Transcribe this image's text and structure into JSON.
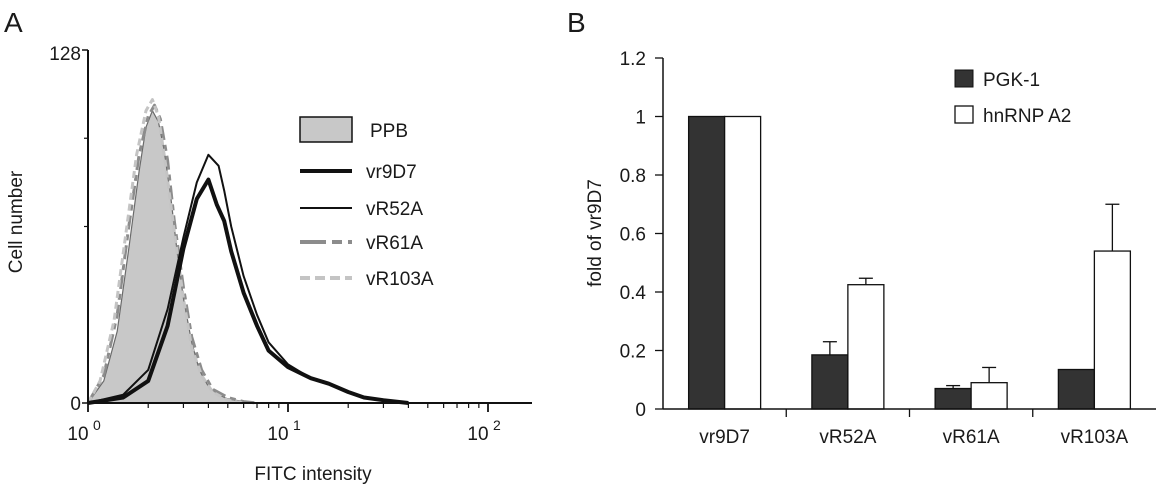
{
  "chart_data": [
    {
      "panel": "A",
      "type": "line",
      "xlabel": "FITC intensity",
      "ylabel": "Cell number",
      "xscale": "log",
      "xlim": [
        1,
        150
      ],
      "ylim": [
        0,
        128
      ],
      "y_tick_labels": [
        "0",
        "128"
      ],
      "x_ticks": [
        {
          "value": 1,
          "base": "10",
          "exp": "0"
        },
        {
          "value": 10,
          "base": "10",
          "exp": "1"
        },
        {
          "value": 100,
          "base": "10",
          "exp": "2"
        }
      ],
      "legend": [
        "PPB",
        "vr9D7",
        "vR52A",
        "vR61A",
        "vR103A"
      ],
      "series": [
        {
          "name": "PPB",
          "style": "filled",
          "color": "#c8c8c8",
          "x": [
            1,
            1.2,
            1.4,
            1.6,
            1.8,
            1.95,
            2.1,
            2.25,
            2.4,
            2.6,
            2.8,
            3.0,
            3.3,
            3.6,
            4.0,
            4.5,
            5.0,
            6.0,
            7.0
          ],
          "y": [
            0,
            8,
            26,
            56,
            84,
            100,
            106,
            102,
            92,
            74,
            54,
            38,
            22,
            12,
            6,
            3,
            1.5,
            0.5,
            0
          ]
        },
        {
          "name": "vr9D7",
          "style": "thick",
          "color": "#111111",
          "x": [
            1,
            1.5,
            2.0,
            2.5,
            3.0,
            3.5,
            4.0,
            4.4,
            4.8,
            5.2,
            6.0,
            7.0,
            8.0,
            10,
            13,
            16,
            20,
            24,
            30,
            40
          ],
          "y": [
            0,
            2,
            8,
            28,
            56,
            74,
            81,
            72,
            66,
            55,
            40,
            28,
            19,
            13,
            9,
            7,
            4,
            2,
            1,
            0
          ]
        },
        {
          "name": "vR52A",
          "style": "thin",
          "color": "#111111",
          "x": [
            1,
            1.5,
            2.0,
            2.5,
            3.0,
            3.5,
            4.0,
            4.5,
            4.8,
            5.2,
            6.0,
            7.0,
            8.0,
            10,
            13,
            16,
            20,
            24,
            30,
            40
          ],
          "y": [
            0,
            3,
            12,
            34,
            60,
            80,
            90,
            86,
            77,
            64,
            46,
            32,
            22,
            14,
            9,
            7,
            4,
            2,
            1,
            0
          ]
        },
        {
          "name": "vR61A",
          "style": "dash",
          "color": "#8c8c8c",
          "x": [
            1,
            1.2,
            1.4,
            1.6,
            1.8,
            2.0,
            2.15,
            2.3,
            2.5,
            2.7,
            3.0,
            3.3,
            3.7,
            4.2,
            5.0,
            6.0,
            7.0
          ],
          "y": [
            0,
            10,
            32,
            64,
            90,
            104,
            108,
            103,
            88,
            66,
            42,
            24,
            12,
            5,
            2,
            0.5,
            0
          ]
        },
        {
          "name": "vR103A",
          "style": "dash",
          "color": "#c4c4c4",
          "x": [
            1,
            1.15,
            1.35,
            1.55,
            1.75,
            1.95,
            2.1,
            2.25,
            2.45,
            2.7,
            3.0,
            3.3,
            3.7,
            4.2,
            5.0,
            6.0
          ],
          "y": [
            0,
            8,
            30,
            62,
            90,
            106,
            110,
            104,
            86,
            62,
            38,
            20,
            10,
            4,
            1,
            0
          ]
        }
      ]
    },
    {
      "panel": "B",
      "type": "bar",
      "ylabel": "fold of vr9D7",
      "ylim": [
        0,
        1.2
      ],
      "y_ticks": [
        0,
        0.2,
        0.4,
        0.6,
        0.8,
        1,
        1.2
      ],
      "y_tick_labels": [
        "0",
        "0.2",
        "0.4",
        "0.6",
        "0.8",
        "1",
        "1.2"
      ],
      "categories": [
        "vr9D7",
        "vR52A",
        "vR61A",
        "vR103A"
      ],
      "legend": [
        "PGK-1",
        "hnRNP A2"
      ],
      "series": [
        {
          "name": "PGK-1",
          "color": "#333333",
          "values": [
            1.0,
            0.185,
            0.07,
            0.135
          ],
          "errors": [
            0,
            0.045,
            0.01,
            0.0
          ]
        },
        {
          "name": "hnRNP A2",
          "color": "#ffffff",
          "values": [
            1.0,
            0.425,
            0.09,
            0.54
          ],
          "errors": [
            0,
            0.022,
            0.052,
            0.16
          ]
        }
      ]
    }
  ],
  "panels": {
    "a": "A",
    "b": "B"
  }
}
